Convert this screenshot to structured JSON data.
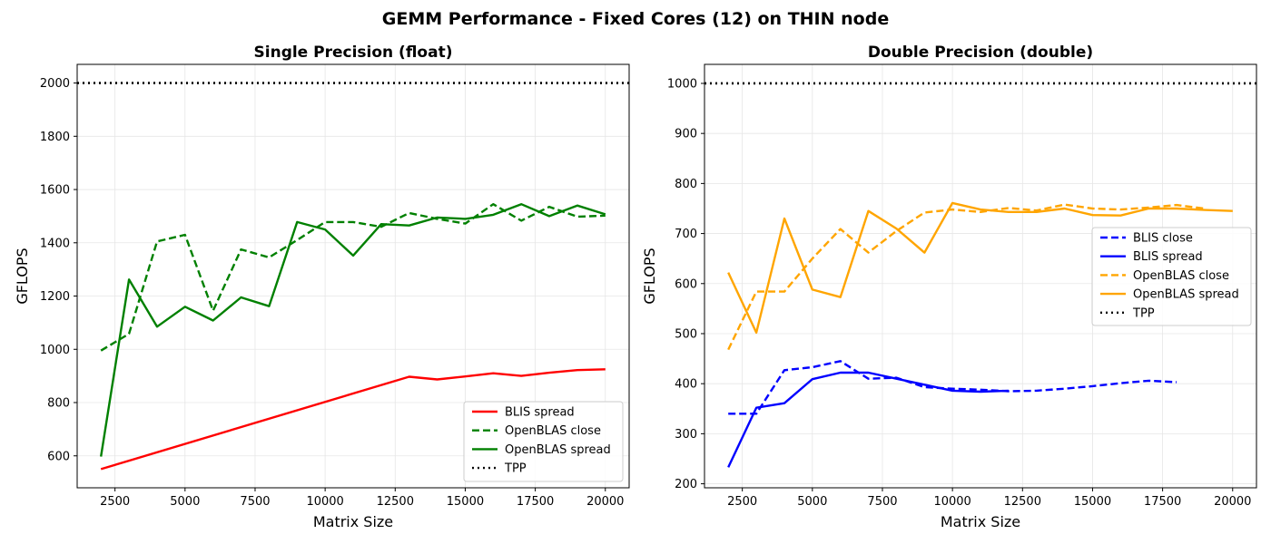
{
  "figure": {
    "title": "GEMM Performance - Fixed Cores (12) on THIN node"
  },
  "chart_data": [
    {
      "type": "line",
      "title": "Single Precision (float)",
      "xlabel": "Matrix Size",
      "ylabel": "GFLOPS",
      "xlim": [
        1150,
        20850
      ],
      "ylim": [
        480,
        2070
      ],
      "xticks": [
        2500,
        5000,
        7500,
        10000,
        12500,
        15000,
        17500,
        20000
      ],
      "yticks": [
        600,
        800,
        1000,
        1200,
        1400,
        1600,
        1800,
        2000
      ],
      "grid": true,
      "legend_position": "lower right",
      "series": [
        {
          "name": "BLIS spread",
          "color": "#ff0000",
          "dash": "solid",
          "x": [
            2000,
            13000,
            14000,
            15000,
            16000,
            17000,
            18000,
            19000,
            20000
          ],
          "y": [
            550,
            897,
            887,
            898,
            910,
            900,
            912,
            922,
            925
          ]
        },
        {
          "name": "OpenBLAS close",
          "color": "#008000",
          "dash": "dashed",
          "x": [
            2000,
            3000,
            4000,
            5000,
            6000,
            7000,
            8000,
            9000,
            10000,
            11000,
            12000,
            13000,
            14000,
            15000,
            16000,
            17000,
            18000,
            19000,
            20000
          ],
          "y": [
            995,
            1058,
            1405,
            1430,
            1145,
            1375,
            1345,
            1410,
            1478,
            1478,
            1460,
            1512,
            1490,
            1472,
            1545,
            1483,
            1535,
            1498,
            1502
          ]
        },
        {
          "name": "OpenBLAS spread",
          "color": "#008000",
          "dash": "solid",
          "x": [
            2000,
            3000,
            4000,
            5000,
            6000,
            7000,
            8000,
            9000,
            10000,
            11000,
            12000,
            13000,
            14000,
            15000,
            16000,
            17000,
            18000,
            19000,
            20000
          ],
          "y": [
            597,
            1262,
            1085,
            1160,
            1108,
            1195,
            1162,
            1478,
            1450,
            1352,
            1470,
            1465,
            1495,
            1490,
            1505,
            1545,
            1500,
            1540,
            1507
          ]
        },
        {
          "name": "TPP",
          "color": "#000000",
          "dash": "dotted",
          "hline": 2000
        }
      ]
    },
    {
      "type": "line",
      "title": "Double Precision (double)",
      "xlabel": "Matrix Size",
      "ylabel": "GFLOPS",
      "xlim": [
        1150,
        20850
      ],
      "ylim": [
        192,
        1038
      ],
      "xticks": [
        2500,
        5000,
        7500,
        10000,
        12500,
        15000,
        17500,
        20000
      ],
      "yticks": [
        200,
        300,
        400,
        500,
        600,
        700,
        800,
        900,
        1000
      ],
      "grid": true,
      "legend_position": "center right",
      "series": [
        {
          "name": "BLIS close",
          "color": "#0000ff",
          "dash": "dashed",
          "x": [
            2000,
            3000,
            4000,
            5000,
            6000,
            7000,
            8000,
            9000,
            10000,
            11000,
            12000,
            13000,
            14000,
            15000,
            16000,
            17000,
            18000
          ],
          "y": [
            340,
            340,
            427,
            433,
            445,
            410,
            412,
            393,
            390,
            388,
            385,
            386,
            390,
            395,
            401,
            406,
            403
          ]
        },
        {
          "name": "BLIS spread",
          "color": "#0000ff",
          "dash": "solid",
          "x": [
            2000,
            3000,
            4000,
            5000,
            6000,
            7000,
            8000,
            9000,
            10000,
            11000,
            12000
          ],
          "y": [
            233,
            352,
            361,
            409,
            422,
            422,
            410,
            398,
            386,
            384,
            386
          ]
        },
        {
          "name": "OpenBLAS close",
          "color": "#ffa500",
          "dash": "dashed",
          "x": [
            2000,
            3000,
            4000,
            5000,
            6000,
            7000,
            8000,
            9000,
            10000,
            11000,
            12000,
            13000,
            14000,
            15000,
            16000,
            17000,
            18000,
            19000
          ],
          "y": [
            468,
            584,
            584,
            650,
            709,
            662,
            705,
            742,
            748,
            743,
            751,
            746,
            758,
            750,
            748,
            752,
            757,
            750
          ]
        },
        {
          "name": "OpenBLAS spread",
          "color": "#ffa500",
          "dash": "solid",
          "x": [
            2000,
            3000,
            4000,
            5000,
            6000,
            7000,
            8000,
            9000,
            10000,
            11000,
            12000,
            13000,
            14000,
            15000,
            16000,
            17000,
            18000,
            19000,
            20000
          ],
          "y": [
            622,
            502,
            730,
            588,
            573,
            745,
            710,
            662,
            761,
            748,
            743,
            743,
            750,
            737,
            736,
            750,
            750,
            747,
            745
          ]
        },
        {
          "name": "TPP",
          "color": "#000000",
          "dash": "dotted",
          "hline": 1000
        }
      ]
    }
  ]
}
